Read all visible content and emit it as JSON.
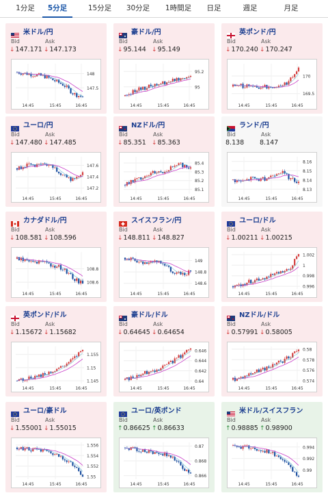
{
  "tabs": [
    {
      "label": "1分足",
      "active": false
    },
    {
      "label": "5分足",
      "active": true
    },
    {
      "label": "15分足",
      "active": false
    },
    {
      "label": "30分足",
      "active": false
    },
    {
      "label": "1時間足",
      "active": false
    },
    {
      "label": "日足",
      "active": false
    },
    {
      "label": "週足",
      "active": false
    },
    {
      "label": "月足",
      "active": false
    }
  ],
  "bid_label": "Bid",
  "ask_label": "Ask",
  "x_ticks": [
    "14:45",
    "15:45",
    "16:45"
  ],
  "colors": {
    "down_bg": "#fbeaec",
    "up_bg": "#e8f3e8",
    "down_arrow": "#d43d3d",
    "up_arrow": "#2c8a3b",
    "bull_candle": "#d43d3d",
    "bear_candle": "#1c4fa0",
    "ma_line": "#c83cc8",
    "ma_line2": "#39a9c9"
  },
  "cards": [
    {
      "pair": "米ドル/円",
      "flag": "us-flag-icon",
      "bid": "147.171",
      "ask": "147.173",
      "bid_dir": "down",
      "ask_dir": "down",
      "chart_data": {
        "type": "candlestick",
        "yticks": [
          "148",
          "147.5"
        ],
        "ylim": [
          147.05,
          148.35
        ],
        "trend": [
          148.05,
          148.0,
          147.95,
          147.9,
          147.75,
          147.6,
          147.3,
          147.17
        ]
      }
    },
    {
      "pair": "豪ドル/円",
      "flag": "au-flag-icon",
      "bid": "95.144",
      "ask": "95.149",
      "bid_dir": "down",
      "ask_dir": "down",
      "chart_data": {
        "type": "candlestick",
        "yticks": [
          "95.2",
          "95"
        ],
        "ylim": [
          94.82,
          95.3
        ],
        "trend": [
          94.88,
          94.95,
          94.98,
          95.02,
          95.05,
          95.08,
          95.12,
          95.14
        ]
      }
    },
    {
      "pair": "英ポンド/円",
      "flag": "uk-flag-icon",
      "bid": "170.240",
      "ask": "170.247",
      "bid_dir": "down",
      "ask_dir": "down",
      "chart_data": {
        "type": "candlestick",
        "yticks": [
          "170",
          "169.5"
        ],
        "ylim": [
          169.3,
          170.35
        ],
        "trend": [
          169.7,
          169.72,
          169.7,
          169.68,
          169.7,
          169.72,
          169.85,
          170.24
        ]
      }
    },
    {
      "pair": "ユーロ/円",
      "flag": "eu-flag-icon",
      "bid": "147.480",
      "ask": "147.485",
      "bid_dir": "down",
      "ask_dir": "down",
      "chart_data": {
        "type": "candlestick",
        "yticks": [
          "147.6",
          "147.4",
          "147.2"
        ],
        "ylim": [
          147.1,
          147.75
        ],
        "trend": [
          147.55,
          147.6,
          147.58,
          147.62,
          147.55,
          147.4,
          147.35,
          147.48
        ]
      }
    },
    {
      "pair": "NZドル/円",
      "flag": "nz-flag-icon",
      "bid": "85.351",
      "ask": "85.363",
      "bid_dir": "down",
      "ask_dir": "down",
      "chart_data": {
        "type": "candlestick",
        "yticks": [
          "85.4",
          "85.3",
          "85.2",
          "85.1"
        ],
        "ylim": [
          85.05,
          85.47
        ],
        "trend": [
          85.15,
          85.2,
          85.25,
          85.3,
          85.3,
          85.35,
          85.38,
          85.35
        ]
      }
    },
    {
      "pair": "ランド/円",
      "flag": "za-flag-icon",
      "bid": "8.138",
      "ask": "8.147",
      "bid_dir": "none",
      "ask_dir": "none",
      "chart_data": {
        "type": "candlestick",
        "yticks": [
          "8.16",
          "8.15",
          "8.14",
          "8.13"
        ],
        "ylim": [
          8.125,
          8.165
        ],
        "trend": [
          8.14,
          8.138,
          8.142,
          8.14,
          8.144,
          8.15,
          8.142,
          8.138
        ]
      }
    },
    {
      "pair": "カナダドル/円",
      "flag": "ca-flag-icon",
      "bid": "108.581",
      "ask": "108.596",
      "bid_dir": "down",
      "ask_dir": "down",
      "chart_data": {
        "type": "candlestick",
        "yticks": [
          "108.8",
          "108.6"
        ],
        "ylim": [
          108.5,
          109.05
        ],
        "trend": [
          108.95,
          108.92,
          108.9,
          108.88,
          108.85,
          108.8,
          108.65,
          108.58
        ]
      }
    },
    {
      "pair": "スイスフラン/円",
      "flag": "ch-flag-icon",
      "bid": "148.811",
      "ask": "148.827",
      "bid_dir": "down",
      "ask_dir": "down",
      "chart_data": {
        "type": "candlestick",
        "yticks": [
          "149",
          "148.8",
          "148.6"
        ],
        "ylim": [
          148.5,
          149.15
        ],
        "trend": [
          149.05,
          149.0,
          148.95,
          149.0,
          148.95,
          148.8,
          148.75,
          148.81
        ]
      }
    },
    {
      "pair": "ユーロ/ドル",
      "flag": "eu-flag-icon",
      "bid": "1.00211",
      "ask": "1.00215",
      "bid_dir": "down",
      "ask_dir": "down",
      "chart_data": {
        "type": "candlestick",
        "yticks": [
          "1.002",
          "1",
          "0.998",
          "0.996"
        ],
        "ylim": [
          0.9955,
          1.0025
        ],
        "trend": [
          0.996,
          0.9965,
          0.997,
          0.9975,
          0.998,
          0.9985,
          0.999,
          1.0021
        ]
      }
    },
    {
      "pair": "英ポンド/ドル",
      "flag": "uk-flag-icon",
      "bid": "1.15672",
      "ask": "1.15682",
      "bid_dir": "down",
      "ask_dir": "down",
      "chart_data": {
        "type": "candlestick",
        "yticks": [
          "1.155",
          "1.15",
          "1.145"
        ],
        "ylim": [
          1.144,
          1.158
        ],
        "trend": [
          1.145,
          1.1458,
          1.1465,
          1.1475,
          1.149,
          1.1505,
          1.153,
          1.1567
        ]
      }
    },
    {
      "pair": "豪ドル/ドル",
      "flag": "au-flag-icon",
      "bid": "0.64645",
      "ask": "0.64654",
      "bid_dir": "down",
      "ask_dir": "down",
      "chart_data": {
        "type": "candlestick",
        "yticks": [
          "0.646",
          "0.644",
          "0.642",
          "0.64"
        ],
        "ylim": [
          0.6395,
          0.6468
        ],
        "trend": [
          0.6402,
          0.6408,
          0.6415,
          0.642,
          0.6428,
          0.6438,
          0.645,
          0.6464
        ]
      }
    },
    {
      "pair": "NZドル/ドル",
      "flag": "nz-flag-icon",
      "bid": "0.57991",
      "ask": "0.58005",
      "bid_dir": "down",
      "ask_dir": "down",
      "chart_data": {
        "type": "candlestick",
        "yticks": [
          "0.58",
          "0.578",
          "0.576",
          "0.574"
        ],
        "ylim": [
          0.5735,
          0.5805
        ],
        "trend": [
          0.5742,
          0.5748,
          0.5755,
          0.576,
          0.5768,
          0.5775,
          0.5785,
          0.5799
        ]
      }
    },
    {
      "pair": "ユーロ/豪ドル",
      "flag": "eu-flag-icon",
      "bid": "1.55001",
      "ask": "1.55015",
      "bid_dir": "down",
      "ask_dir": "down",
      "chart_data": {
        "type": "candlestick",
        "yticks": [
          "1.556",
          "1.554",
          "1.552",
          "1.55"
        ],
        "ylim": [
          1.5495,
          1.5565
        ],
        "trend": [
          1.5555,
          1.5552,
          1.555,
          1.5548,
          1.5542,
          1.5535,
          1.552,
          1.55
        ]
      }
    },
    {
      "pair": "ユーロ/英ポンド",
      "flag": "eu-flag-icon",
      "bid": "0.86625",
      "ask": "0.86633",
      "bid_dir": "up",
      "ask_dir": "up",
      "chart_data": {
        "type": "candlestick",
        "yticks": [
          "0.87",
          "0.868",
          "0.866"
        ],
        "ylim": [
          0.8655,
          0.8705
        ],
        "trend": [
          0.8698,
          0.8696,
          0.8694,
          0.8692,
          0.869,
          0.8685,
          0.8672,
          0.8663
        ]
      }
    },
    {
      "pair": "米ドル/スイスフラン",
      "flag": "us-flag-icon",
      "bid": "0.98885",
      "ask": "0.98900",
      "bid_dir": "up",
      "ask_dir": "up",
      "chart_data": {
        "type": "candlestick",
        "yticks": [
          "0.994",
          "0.992",
          "0.99"
        ],
        "ylim": [
          0.9884,
          0.9948
        ],
        "trend": [
          0.9942,
          0.994,
          0.9938,
          0.9935,
          0.993,
          0.9922,
          0.9905,
          0.98885
        ]
      }
    }
  ]
}
